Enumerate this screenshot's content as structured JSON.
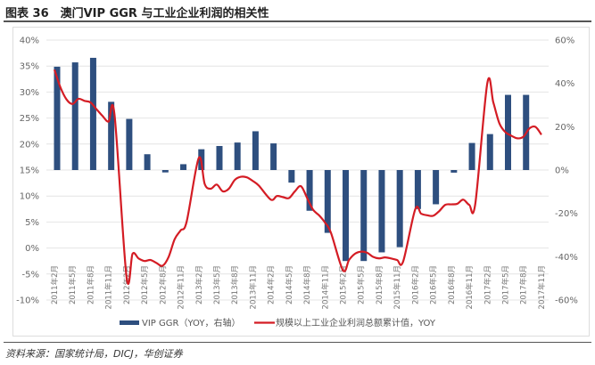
{
  "title": "图表 36　澳门VIP GGR 与工业企业利润的相关性",
  "source": "资料来源：国家统计局，DICJ，华创证券",
  "chart_data": {
    "type": "bar+line",
    "title": "",
    "left_axis": {
      "ylim": [
        -10,
        40
      ],
      "ticks": [
        "40%",
        "35%",
        "30%",
        "25%",
        "20%",
        "15%",
        "10%",
        "5%",
        "0%",
        "-5%",
        "-10%"
      ],
      "tick_values": [
        40,
        35,
        30,
        25,
        20,
        15,
        10,
        5,
        0,
        -5,
        -10
      ]
    },
    "right_axis": {
      "ylim": [
        -60,
        60
      ],
      "ticks": [
        "60%",
        "40%",
        "20%",
        "0%",
        "-20%",
        "-40%",
        "-60%"
      ],
      "tick_values": [
        60,
        40,
        20,
        0,
        -20,
        -40,
        -60
      ]
    },
    "grid": true,
    "legend_position": "bottom",
    "categories": [
      "2011年2月",
      "2011年5月",
      "2011年8月",
      "2011年11月",
      "2012年2月",
      "2012年5月",
      "2012年8月",
      "2012年11月",
      "2013年2月",
      "2013年5月",
      "2013年8月",
      "2013年11月",
      "2014年2月",
      "2014年5月",
      "2014年8月",
      "2014年11月",
      "2015年2月",
      "2015年5月",
      "2015年8月",
      "2015年11月",
      "2016年2月",
      "2016年5月",
      "2016年8月",
      "2016年11月",
      "2017年2月",
      "2017年5月",
      "2017年8月",
      "2017年11月"
    ],
    "series": [
      {
        "name": "VIP GGR（YOY，右轴）",
        "type": "bar",
        "axis": "right",
        "color": "#2e4f7f",
        "values": [
          47.7,
          49.7,
          51.8,
          31.5,
          23.6,
          7.3,
          -1.1,
          2.7,
          9.6,
          11.1,
          12.7,
          17.9,
          12.3,
          -5.8,
          -18.8,
          -29,
          -42,
          -42,
          -38,
          -35.6,
          -18,
          -15.8,
          -1.2,
          12.5,
          16.6,
          34.7,
          34.7,
          null
        ]
      },
      {
        "name": "规模以上工业企业利润总额累计值，YOY",
        "type": "line",
        "axis": "left",
        "color": "#d41c24",
        "x": [
          "2011-02",
          "2011-03",
          "2011-04",
          "2011-05",
          "2011-06",
          "2011-07",
          "2011-08",
          "2011-09",
          "2011-10",
          "2011-11",
          "2011-12",
          "2012-02",
          "2012-03",
          "2012-04",
          "2012-05",
          "2012-06",
          "2012-07",
          "2012-08",
          "2012-09",
          "2012-10",
          "2012-11",
          "2012-12",
          "2013-02",
          "2013-03",
          "2013-04",
          "2013-05",
          "2013-06",
          "2013-07",
          "2013-08",
          "2013-09",
          "2013-10",
          "2013-11",
          "2013-12",
          "2014-02",
          "2014-03",
          "2014-04",
          "2014-05",
          "2014-06",
          "2014-07",
          "2014-08",
          "2014-09",
          "2014-10",
          "2014-11",
          "2014-12",
          "2015-02",
          "2015-03",
          "2015-04",
          "2015-05",
          "2015-06",
          "2015-07",
          "2015-08",
          "2015-09",
          "2015-10",
          "2015-11",
          "2015-12",
          "2016-02",
          "2016-03",
          "2016-04",
          "2016-05",
          "2016-06",
          "2016-07",
          "2016-08",
          "2016-09",
          "2016-10",
          "2016-11",
          "2016-12",
          "2017-02",
          "2017-03",
          "2017-04",
          "2017-05",
          "2017-06",
          "2017-07",
          "2017-08",
          "2017-09",
          "2017-10",
          "2017-11"
        ],
        "values": [
          34.3,
          30.9,
          28.6,
          27.7,
          28.7,
          28.3,
          28.0,
          26.7,
          25.4,
          24.3,
          25.6,
          -5.6,
          -1.1,
          -2.0,
          -2.5,
          -2.3,
          -2.9,
          -3.4,
          -1.7,
          1.7,
          3.4,
          5.1,
          17.3,
          12.3,
          11.4,
          12.2,
          10.9,
          11.4,
          13.1,
          13.7,
          13.6,
          12.9,
          12.0,
          9.3,
          10.0,
          9.8,
          9.6,
          10.9,
          11.9,
          9.7,
          7.4,
          6.3,
          4.9,
          2.9,
          -4.3,
          -2.3,
          -1.1,
          -0.7,
          -0.9,
          -1.7,
          -2.0,
          -1.8,
          -2.0,
          -2.3,
          -2.6,
          7.4,
          6.6,
          6.3,
          6.2,
          7.1,
          8.3,
          8.4,
          8.5,
          9.3,
          8.3,
          8.5,
          31.7,
          28.0,
          24.0,
          22.3,
          21.6,
          21.1,
          21.4,
          23.0,
          23.3,
          21.8
        ]
      }
    ]
  }
}
